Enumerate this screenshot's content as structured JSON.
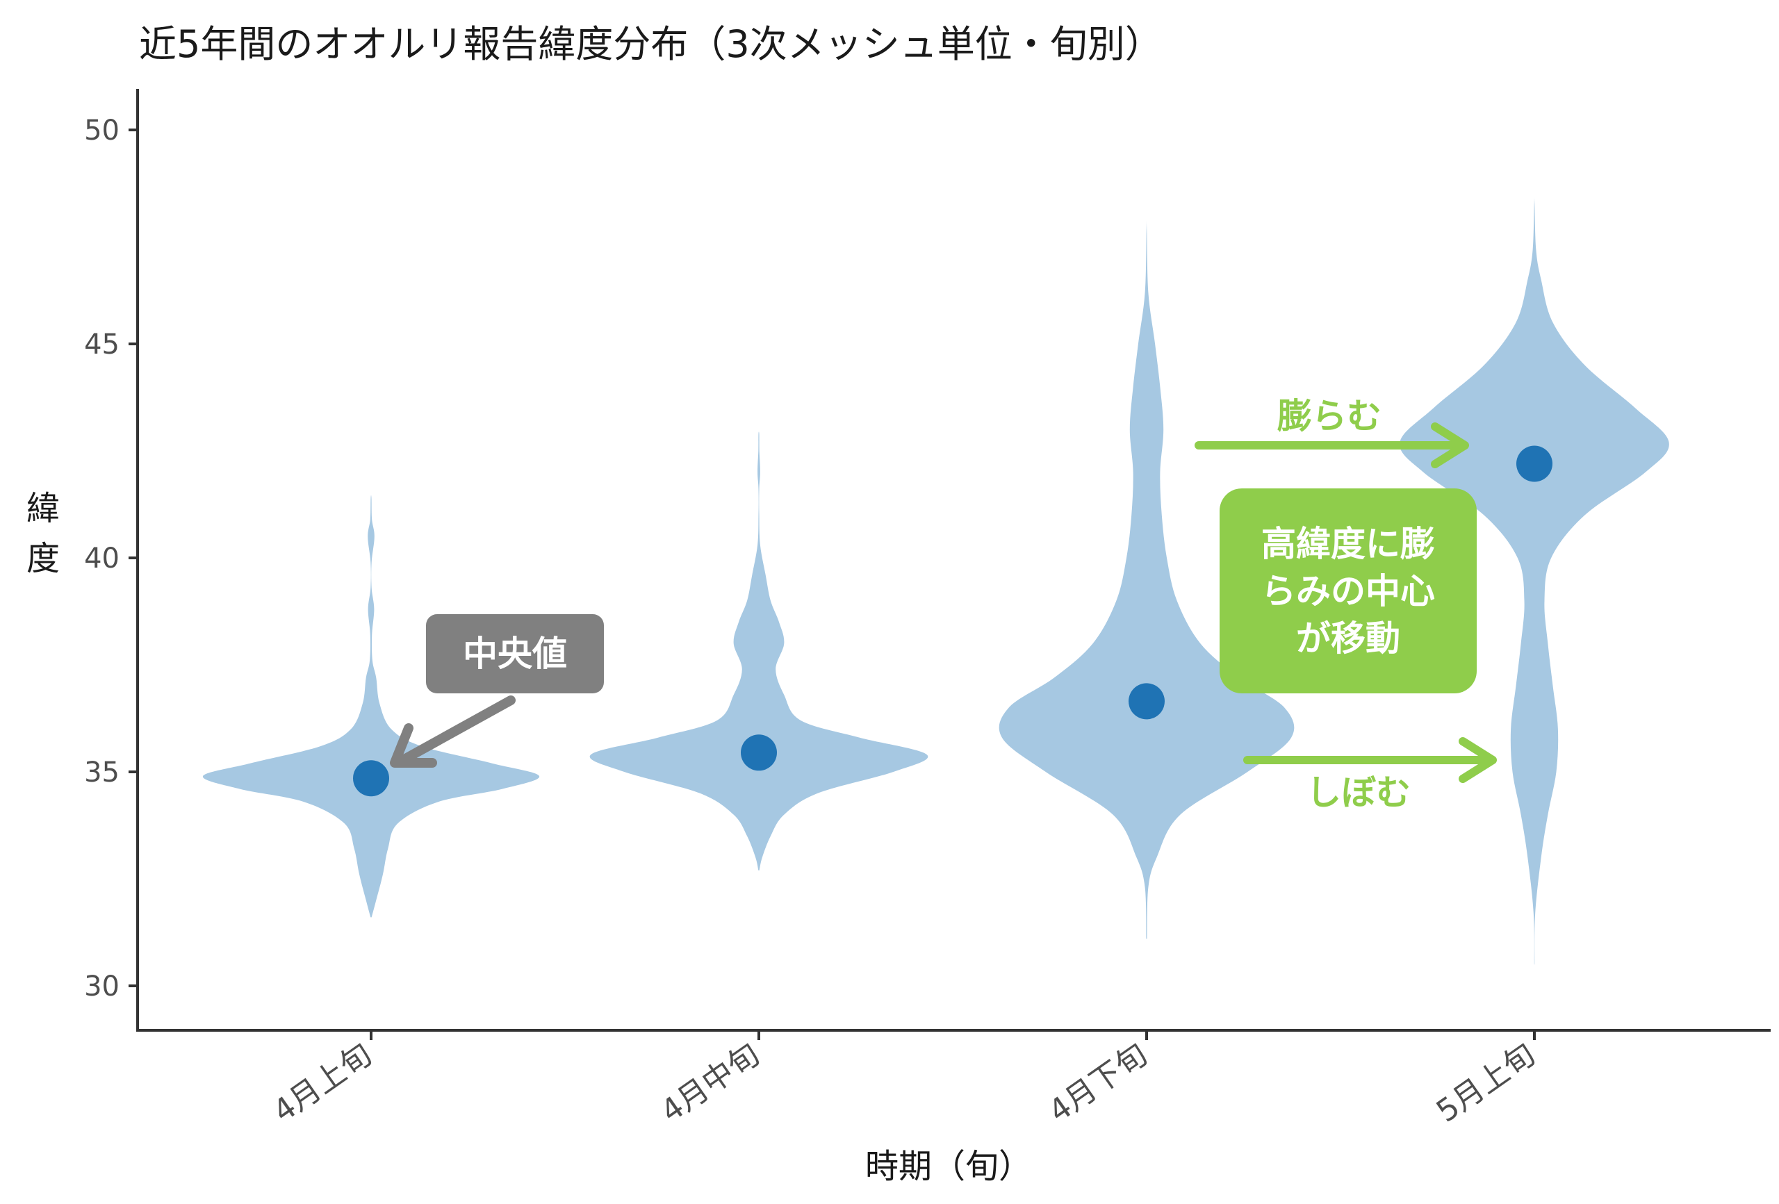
{
  "title": "近5年間のオオルリ報告緯度分布（3次メッシュ単位・旬別）",
  "colors": {
    "violin_fill": "#a6c8e2",
    "median_point": "#1f73b4",
    "axis": "#333333",
    "tick_text": "#4d4d4d",
    "callout_gray": "#808080",
    "accent_green": "#8fcd4b"
  },
  "chart_data": {
    "type": "violin",
    "title": "近5年間のオオルリ報告緯度分布（3次メッシュ単位・旬別）",
    "xlabel": "時期（旬）",
    "ylabel": "緯度",
    "ylim": [
      29,
      51
    ],
    "yticks": [
      30,
      35,
      40,
      45,
      50
    ],
    "grid": false,
    "categories": [
      "4月上旬",
      "4月中旬",
      "4月下旬",
      "5月上旬"
    ],
    "medians": [
      34.85,
      35.45,
      36.65,
      42.2
    ],
    "violins": [
      {
        "category": "4月上旬",
        "ymin": 31.6,
        "ymax": 41.4,
        "profile": [
          [
            31.6,
            0.003
          ],
          [
            32.0,
            0.03
          ],
          [
            32.6,
            0.07
          ],
          [
            33.2,
            0.1
          ],
          [
            33.8,
            0.16
          ],
          [
            34.3,
            0.4
          ],
          [
            34.6,
            0.78
          ],
          [
            34.9,
            1.0
          ],
          [
            35.2,
            0.72
          ],
          [
            35.6,
            0.3
          ],
          [
            36.0,
            0.12
          ],
          [
            36.6,
            0.05
          ],
          [
            37.2,
            0.03
          ],
          [
            37.6,
            0.008
          ],
          [
            38.2,
            0.005
          ],
          [
            38.8,
            0.018
          ],
          [
            39.3,
            0.003
          ],
          [
            39.9,
            0.003
          ],
          [
            40.5,
            0.02
          ],
          [
            40.9,
            0.005
          ],
          [
            41.4,
            0.002
          ]
        ]
      },
      {
        "category": "4月中旬",
        "ymin": 32.7,
        "ymax": 42.9,
        "profile": [
          [
            32.7,
            0.003
          ],
          [
            33.0,
            0.02
          ],
          [
            33.5,
            0.07
          ],
          [
            34.0,
            0.15
          ],
          [
            34.5,
            0.35
          ],
          [
            35.0,
            0.8
          ],
          [
            35.4,
            1.0
          ],
          [
            35.8,
            0.6
          ],
          [
            36.2,
            0.25
          ],
          [
            36.8,
            0.15
          ],
          [
            37.4,
            0.1
          ],
          [
            38.0,
            0.15
          ],
          [
            38.5,
            0.12
          ],
          [
            39.0,
            0.07
          ],
          [
            39.6,
            0.04
          ],
          [
            40.3,
            0.008
          ],
          [
            41.0,
            0.002
          ],
          [
            41.6,
            0.002
          ],
          [
            42.0,
            0.008
          ],
          [
            42.5,
            0.003
          ],
          [
            42.9,
            0.002
          ]
        ]
      },
      {
        "category": "4月下旬",
        "ymin": 31.1,
        "ymax": 47.7,
        "profile": [
          [
            31.1,
            0.002
          ],
          [
            32.3,
            0.01
          ],
          [
            33.0,
            0.06
          ],
          [
            34.0,
            0.2
          ],
          [
            35.0,
            0.6
          ],
          [
            35.8,
            0.86
          ],
          [
            36.5,
            0.82
          ],
          [
            37.2,
            0.55
          ],
          [
            38.0,
            0.32
          ],
          [
            39.0,
            0.18
          ],
          [
            40.0,
            0.12
          ],
          [
            41.0,
            0.09
          ],
          [
            42.0,
            0.08
          ],
          [
            43.0,
            0.1
          ],
          [
            44.0,
            0.08
          ],
          [
            45.0,
            0.05
          ],
          [
            46.2,
            0.01
          ],
          [
            47.7,
            0.001
          ]
        ]
      },
      {
        "category": "5月上旬",
        "ymin": 30.5,
        "ymax": 48.3,
        "profile": [
          [
            30.5,
            0.001
          ],
          [
            31.7,
            0.005
          ],
          [
            33.0,
            0.04
          ],
          [
            34.0,
            0.08
          ],
          [
            35.0,
            0.13
          ],
          [
            36.0,
            0.14
          ],
          [
            37.0,
            0.11
          ],
          [
            38.0,
            0.08
          ],
          [
            39.0,
            0.06
          ],
          [
            40.0,
            0.1
          ],
          [
            41.0,
            0.3
          ],
          [
            42.0,
            0.66
          ],
          [
            42.7,
            0.8
          ],
          [
            43.5,
            0.6
          ],
          [
            44.5,
            0.3
          ],
          [
            45.5,
            0.11
          ],
          [
            46.5,
            0.04
          ],
          [
            47.2,
            0.01
          ],
          [
            48.3,
            0.001
          ]
        ]
      }
    ]
  },
  "annotations": {
    "median_label": "中央値",
    "center_shift": "高緯度に膨らみの中心が移動",
    "center_shift_lines": [
      "高緯度に膨",
      "らみの中心",
      "が移動"
    ],
    "expand_label": "膨らむ",
    "shrink_label": "しぼむ"
  }
}
